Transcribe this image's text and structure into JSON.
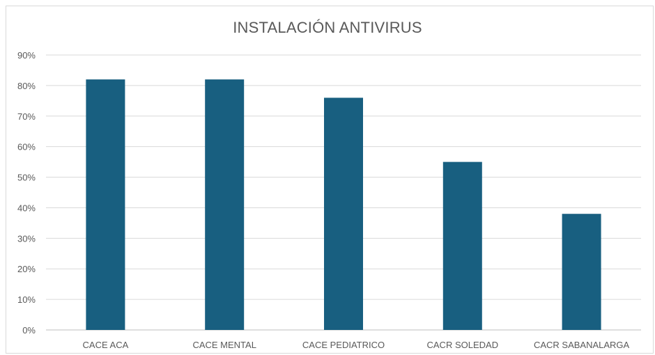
{
  "chart_data": {
    "type": "bar",
    "title": "INSTALACIÓN ANTIVIRUS",
    "xlabel": "",
    "ylabel": "",
    "categories": [
      "CACE ACA",
      "CACE MENTAL",
      "CACE PEDIATRICO",
      "CACR SOLEDAD",
      "CACR SABANALARGA"
    ],
    "values": [
      0.82,
      0.82,
      0.76,
      0.55,
      0.38
    ],
    "ylim": [
      0,
      0.9
    ],
    "yticks": [
      "0%",
      "10%",
      "20%",
      "30%",
      "40%",
      "50%",
      "60%",
      "70%",
      "80%",
      "90%"
    ],
    "grid": true,
    "legend": "none",
    "bar_color": "#185f80"
  }
}
